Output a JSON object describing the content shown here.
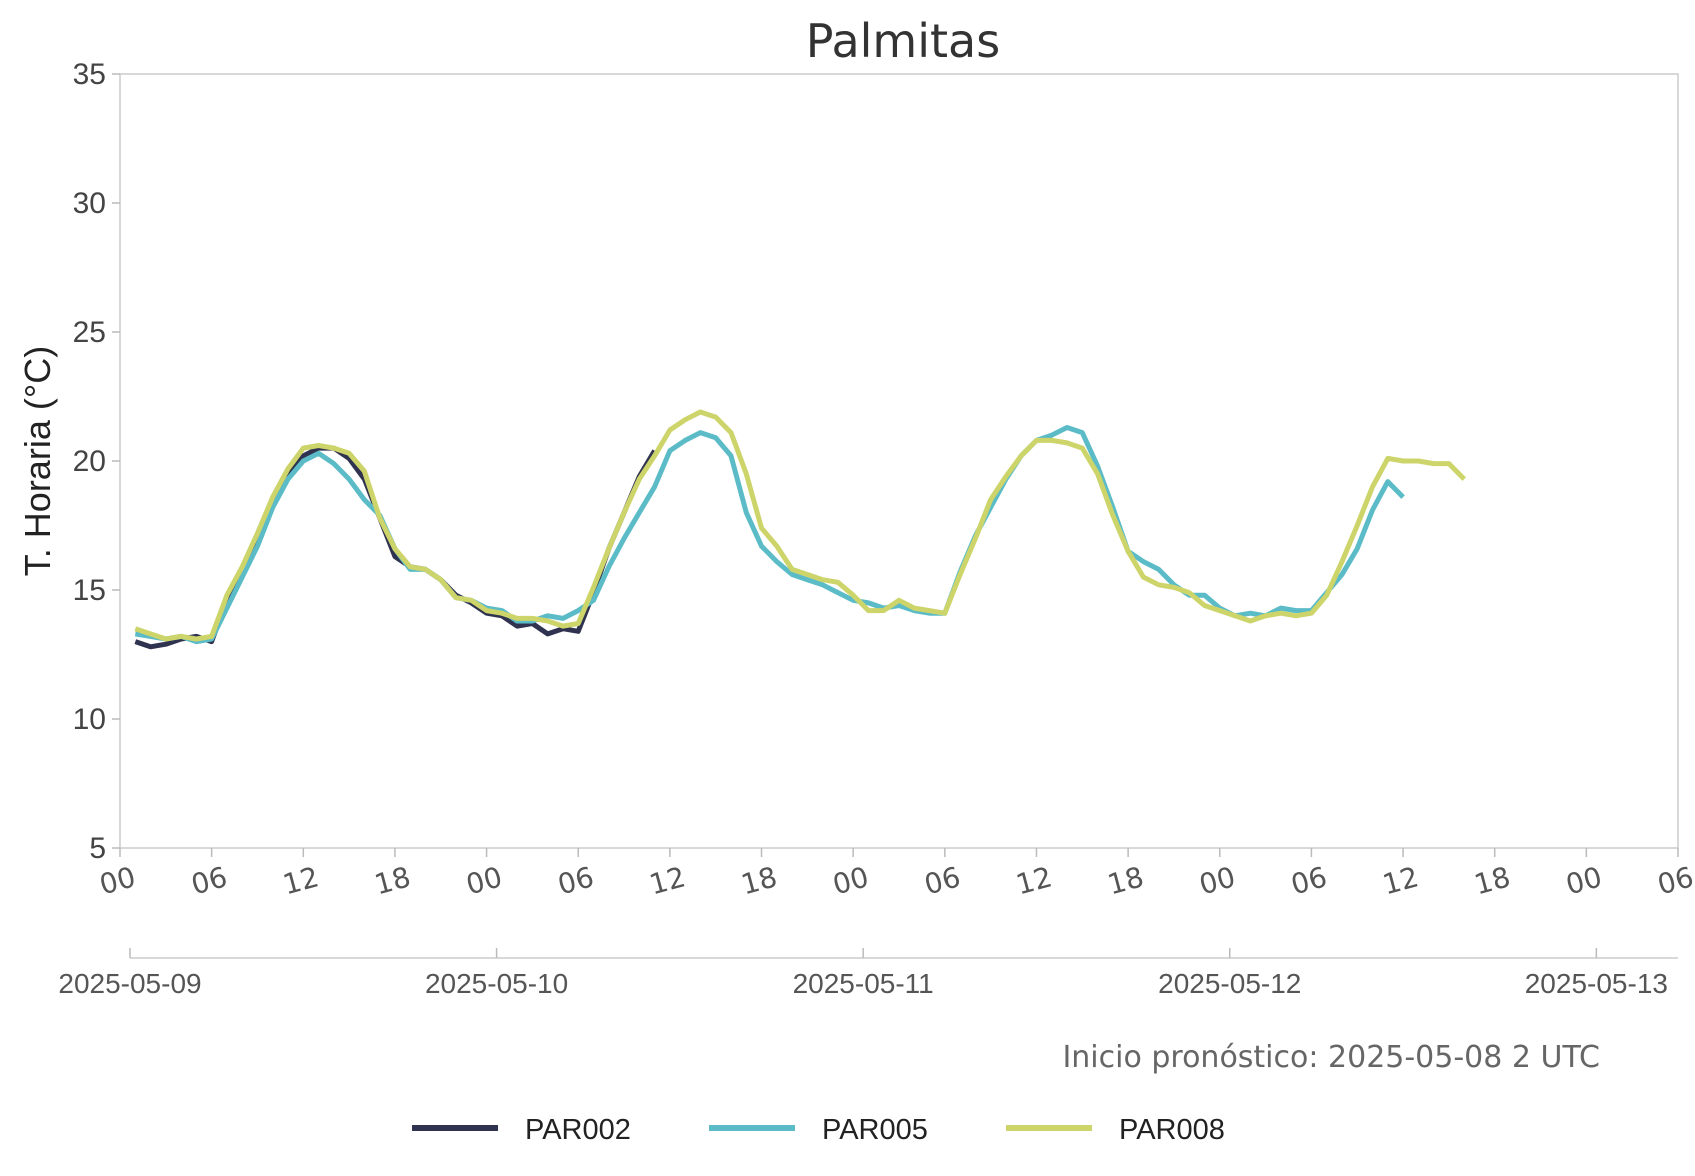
{
  "chart_data": {
    "type": "line",
    "title": "Palmitas",
    "ylabel": "T. Horaria (°C)",
    "xlabel": "",
    "ylim": [
      5,
      35
    ],
    "yticks": [
      5,
      10,
      15,
      20,
      25,
      30,
      35
    ],
    "xlim": [
      "2025-05-09T00:00",
      "2025-05-13T06:00"
    ],
    "hour_ticks": [
      {
        "t": "2025-05-09T00:00",
        "label": "00"
      },
      {
        "t": "2025-05-09T06:00",
        "label": "06"
      },
      {
        "t": "2025-05-09T12:00",
        "label": "12"
      },
      {
        "t": "2025-05-09T18:00",
        "label": "18"
      },
      {
        "t": "2025-05-10T00:00",
        "label": "00"
      },
      {
        "t": "2025-05-10T06:00",
        "label": "06"
      },
      {
        "t": "2025-05-10T12:00",
        "label": "12"
      },
      {
        "t": "2025-05-10T18:00",
        "label": "18"
      },
      {
        "t": "2025-05-11T00:00",
        "label": "00"
      },
      {
        "t": "2025-05-11T06:00",
        "label": "06"
      },
      {
        "t": "2025-05-11T12:00",
        "label": "12"
      },
      {
        "t": "2025-05-11T18:00",
        "label": "18"
      },
      {
        "t": "2025-05-12T00:00",
        "label": "00"
      },
      {
        "t": "2025-05-12T06:00",
        "label": "06"
      },
      {
        "t": "2025-05-12T12:00",
        "label": "12"
      },
      {
        "t": "2025-05-12T18:00",
        "label": "18"
      },
      {
        "t": "2025-05-13T00:00",
        "label": "00"
      },
      {
        "t": "2025-05-13T06:00",
        "label": "06"
      }
    ],
    "date_ticks": [
      "2025-05-09",
      "2025-05-10",
      "2025-05-11",
      "2025-05-12",
      "2025-05-13"
    ],
    "grid": false,
    "legend_position": "bottom",
    "series": [
      {
        "name": "PAR002",
        "color": "#2f3350",
        "start": "2025-05-09T01:00",
        "step_hours": 1,
        "values": [
          13.0,
          12.8,
          12.9,
          13.1,
          13.2,
          13.0,
          14.6,
          15.8,
          17.0,
          18.3,
          19.4,
          20.2,
          20.5,
          20.5,
          20.1,
          19.3,
          17.8,
          16.3,
          15.9,
          15.8,
          15.4,
          14.8,
          14.5,
          14.1,
          14.0,
          13.6,
          13.7,
          13.3,
          13.5,
          13.4,
          14.9,
          16.6,
          18.0,
          19.4,
          20.4
        ]
      },
      {
        "name": "PAR005",
        "color": "#5bbcc7",
        "start": "2025-05-09T01:00",
        "step_hours": 1,
        "values": [
          13.3,
          13.2,
          13.1,
          13.2,
          13.0,
          13.1,
          14.3,
          15.5,
          16.7,
          18.2,
          19.3,
          20.0,
          20.3,
          19.9,
          19.3,
          18.5,
          17.9,
          16.6,
          15.8,
          15.8,
          15.4,
          14.7,
          14.6,
          14.3,
          14.2,
          13.8,
          13.8,
          14.0,
          13.9,
          14.2,
          14.6,
          15.9,
          17.0,
          18.0,
          19.0,
          20.4,
          20.8,
          21.1,
          20.9,
          20.2,
          18.0,
          16.7,
          16.1,
          15.6,
          15.4,
          15.2,
          14.9,
          14.6,
          14.5,
          14.3,
          14.4,
          14.2,
          14.1,
          14.1,
          15.7,
          17.1,
          18.2,
          19.3,
          20.2,
          20.8,
          21.0,
          21.3,
          21.1,
          19.8,
          18.2,
          16.5,
          16.1,
          15.8,
          15.2,
          14.8,
          14.8,
          14.3,
          14.0,
          14.1,
          14.0,
          14.3,
          14.2,
          14.2,
          14.9,
          15.6,
          16.6,
          18.1,
          19.2,
          18.6
        ]
      },
      {
        "name": "PAR008",
        "color": "#cdd46a",
        "start": "2025-05-09T01:00",
        "step_hours": 1,
        "values": [
          13.5,
          13.3,
          13.1,
          13.2,
          13.1,
          13.2,
          14.8,
          15.9,
          17.2,
          18.6,
          19.7,
          20.5,
          20.6,
          20.5,
          20.3,
          19.6,
          17.8,
          16.6,
          15.9,
          15.8,
          15.4,
          14.7,
          14.6,
          14.2,
          14.1,
          13.9,
          13.9,
          13.8,
          13.6,
          13.7,
          15.1,
          16.6,
          18.0,
          19.3,
          20.2,
          21.2,
          21.6,
          21.9,
          21.7,
          21.1,
          19.5,
          17.4,
          16.7,
          15.8,
          15.6,
          15.4,
          15.3,
          14.8,
          14.2,
          14.2,
          14.6,
          14.3,
          14.2,
          14.1,
          15.6,
          17.0,
          18.5,
          19.4,
          20.2,
          20.8,
          20.8,
          20.7,
          20.5,
          19.5,
          17.9,
          16.5,
          15.5,
          15.2,
          15.1,
          14.9,
          14.4,
          14.2,
          14.0,
          13.8,
          14.0,
          14.1,
          14.0,
          14.1,
          14.8,
          16.1,
          17.5,
          19.0,
          20.1,
          20.0,
          20.0,
          19.9,
          19.9,
          19.3
        ]
      }
    ]
  },
  "note": "Inicio pronóstico: 2025-05-08 2 UTC"
}
